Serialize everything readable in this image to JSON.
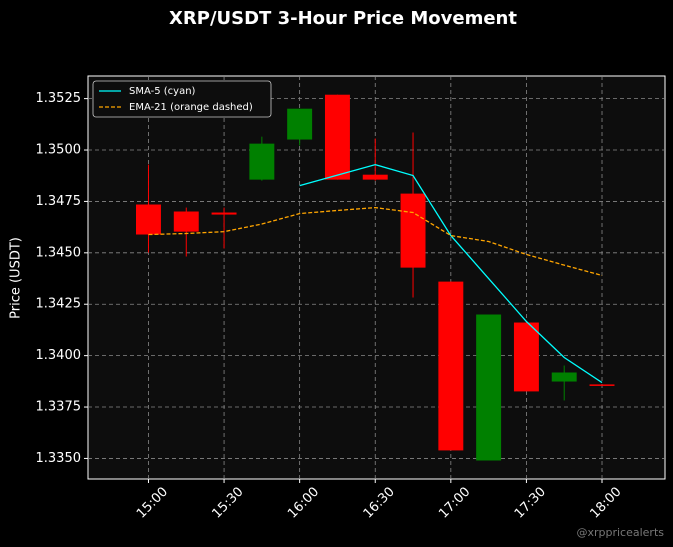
{
  "chart_data": {
    "type": "candlestick",
    "title": "XRP/USDT 3-Hour Price Movement",
    "ylabel": "Price (USDT)",
    "watermark": "@xrppricealerts",
    "x": [
      "15:00",
      "15:15",
      "15:30",
      "15:45",
      "16:00",
      "16:15",
      "16:30",
      "16:45",
      "17:00",
      "17:15",
      "17:30",
      "17:45",
      "18:00"
    ],
    "open": [
      1.34735,
      1.34701,
      1.34696,
      1.34856,
      1.35051,
      1.35269,
      1.3488,
      1.34788,
      1.3436,
      1.3349,
      1.34161,
      1.33874,
      1.3386
    ],
    "high": [
      1.34929,
      1.3472,
      1.3472,
      1.35065,
      1.35201,
      1.35269,
      1.35056,
      1.35085,
      1.3436,
      1.342,
      1.34161,
      1.33952,
      1.3386
    ],
    "low": [
      1.34501,
      1.34482,
      1.34521,
      1.34851,
      1.35022,
      1.34856,
      1.34851,
      1.34283,
      1.33539,
      1.3349,
      1.33826,
      1.33782,
      1.33855
    ],
    "close": [
      1.34589,
      1.34603,
      1.34686,
      1.35031,
      1.35201,
      1.34856,
      1.34856,
      1.34428,
      1.33539,
      1.342,
      1.33826,
      1.33918,
      1.33855
    ],
    "up_color": "#008000",
    "down_color": "#ff0000",
    "series": [
      {
        "name": "SMA-5 (cyan)",
        "color": "#00ffff",
        "dashed": false,
        "values": [
          null,
          null,
          null,
          null,
          1.34827,
          1.34878,
          1.34929,
          1.34876,
          1.34584,
          1.34375,
          1.34166,
          1.33991,
          1.33869
        ]
      },
      {
        "name": "EMA-21 (orange dashed)",
        "color": "#ffa500",
        "dashed": true,
        "values": [
          1.34589,
          1.34594,
          1.34603,
          1.3464,
          1.34691,
          1.34706,
          1.3472,
          1.34696,
          1.34584,
          1.34555,
          1.34492,
          1.3444,
          1.3439
        ]
      }
    ],
    "xlim": [
      "14:36",
      "18:25"
    ],
    "xticks": [
      "15:00",
      "15:30",
      "16:00",
      "16:30",
      "17:00",
      "17:30",
      "18:00"
    ],
    "ylim": [
      1.334,
      1.3536
    ],
    "yticks": [
      {
        "value": 1.335,
        "label": "1.3350"
      },
      {
        "value": 1.3375,
        "label": "1.3375"
      },
      {
        "value": 1.34,
        "label": "1.3400"
      },
      {
        "value": 1.3425,
        "label": "1.3425"
      },
      {
        "value": 1.345,
        "label": "1.3450"
      },
      {
        "value": 1.3475,
        "label": "1.3475"
      },
      {
        "value": 1.35,
        "label": "1.3500"
      },
      {
        "value": 1.3525,
        "label": "1.3525"
      }
    ],
    "grid": true,
    "legend": "upper left"
  }
}
